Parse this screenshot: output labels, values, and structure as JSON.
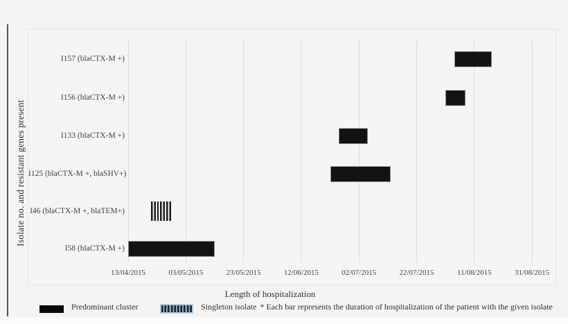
{
  "colors": {
    "background": "#f5f4f2",
    "bar_fill": "#131313",
    "bar_outline": "#8e8e8e",
    "gridline": "#dcdcd9",
    "text": "#3a3a3a",
    "singleton_highlight_border": "#aecbe2"
  },
  "chart_data": {
    "type": "bar",
    "variant": "horizontal-range-gantt",
    "title": "",
    "xlabel": "Length of hospitalization",
    "ylabel": "Isolate no. and resistant genes present",
    "x_tick_labels": [
      "13/04/2015",
      "03/05/2015",
      "23/05/2015",
      "12/06/2015",
      "02/07/2015",
      "22/07/2015",
      "11/08/2015",
      "31/08/2015"
    ],
    "x_tick_interval_days": 20,
    "x_axis_range_estimate": [
      "10/03/2015",
      "08/09/2015"
    ],
    "grid": "vertical-only",
    "bars": [
      {
        "isolate": "I157",
        "label": "I157 (blaCTX-M +)",
        "start": "04/08/2015",
        "end": "17/08/2015",
        "style": "predominant-cluster"
      },
      {
        "isolate": "I156",
        "label": "I156 (blaCTX-M +)",
        "start": "01/08/2015",
        "end": "08/08/2015",
        "style": "predominant-cluster"
      },
      {
        "isolate": "I133",
        "label": "I133 (blaCTX-M +)",
        "start": "25/06/2015",
        "end": "05/07/2015",
        "style": "predominant-cluster"
      },
      {
        "isolate": "I125",
        "label": "I125 (blaCTX-M +, blaSHV+)",
        "start": "22/06/2015",
        "end": "13/07/2015",
        "style": "predominant-cluster"
      },
      {
        "isolate": "I46",
        "label": "I46 (blaCTX-M +, blaTEM+)",
        "start": "21/04/2015",
        "end": "28/04/2015",
        "style": "singleton"
      },
      {
        "isolate": "I58",
        "label": "I58 (blaCTX-M +)",
        "start": "13/04/2015",
        "end": "13/05/2015",
        "style": "predominant-cluster"
      }
    ],
    "legend": [
      {
        "style": "predominant-cluster",
        "swatch": "solid-black-rectangle",
        "label": "Predominant cluster"
      },
      {
        "style": "singleton",
        "swatch": "vertical-stripes-highlighted",
        "label": "Singleton isolate"
      }
    ],
    "footnote": "* Each bar represents the duration of hospitalization of the patient with the given isolate",
    "legend_position": "bottom"
  }
}
